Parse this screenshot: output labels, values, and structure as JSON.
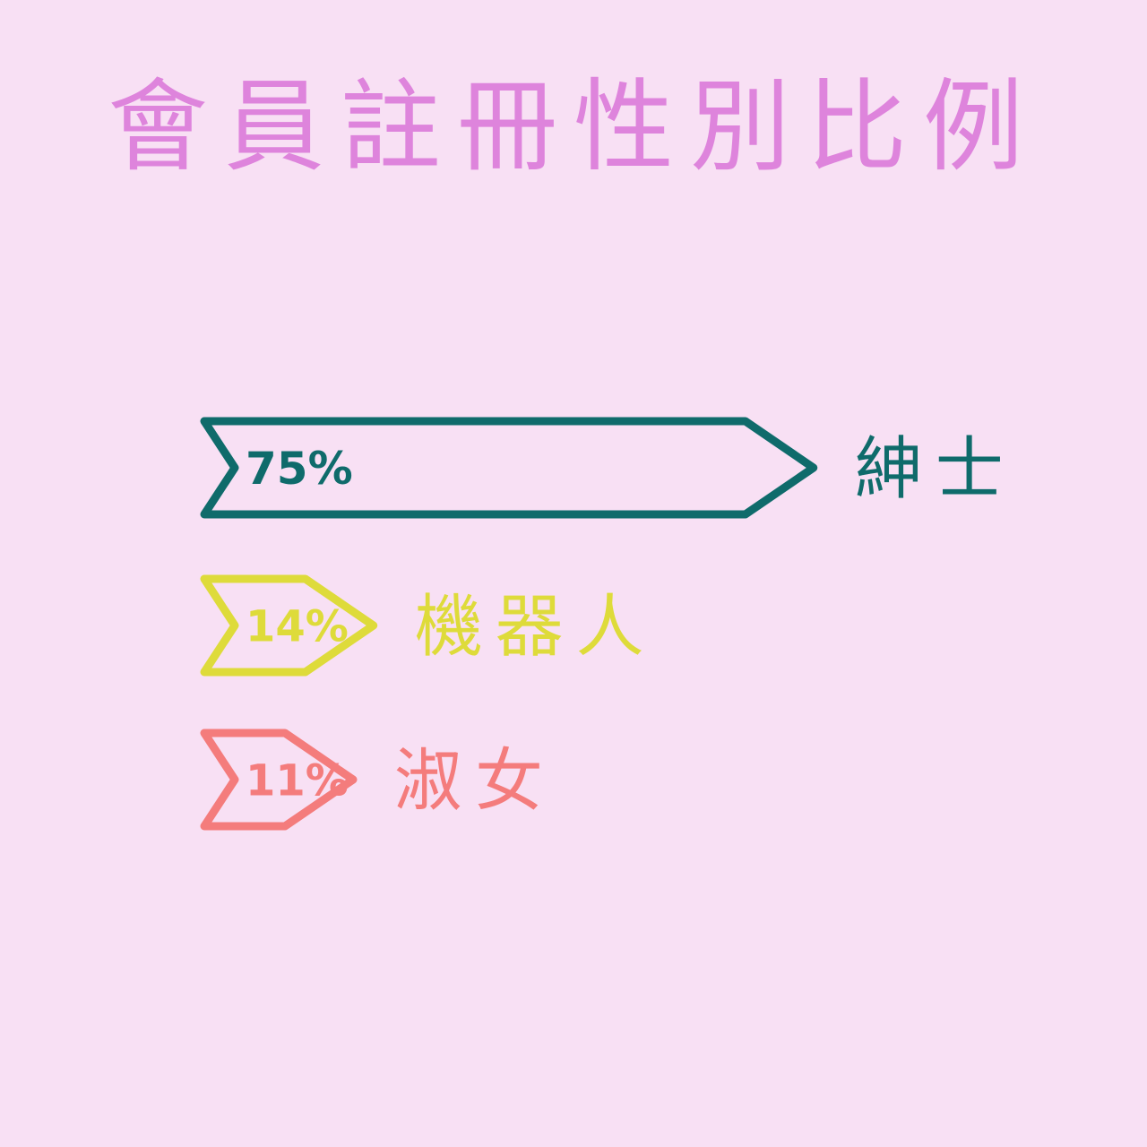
{
  "chart_data": {
    "type": "bar",
    "title": "會員註冊性別比例",
    "categories": [
      "紳士",
      "機器人",
      "淑女"
    ],
    "values": [
      75,
      14,
      11
    ],
    "value_labels": [
      "75%",
      "14%",
      "11%"
    ],
    "colors": [
      "#0f6b6b",
      "#dedb3a",
      "#f47c7c"
    ],
    "xlabel": "",
    "ylabel": "",
    "grid": false,
    "legend": "none"
  },
  "colors": {
    "background": "#f8e0f4",
    "title": "#de84dc"
  }
}
